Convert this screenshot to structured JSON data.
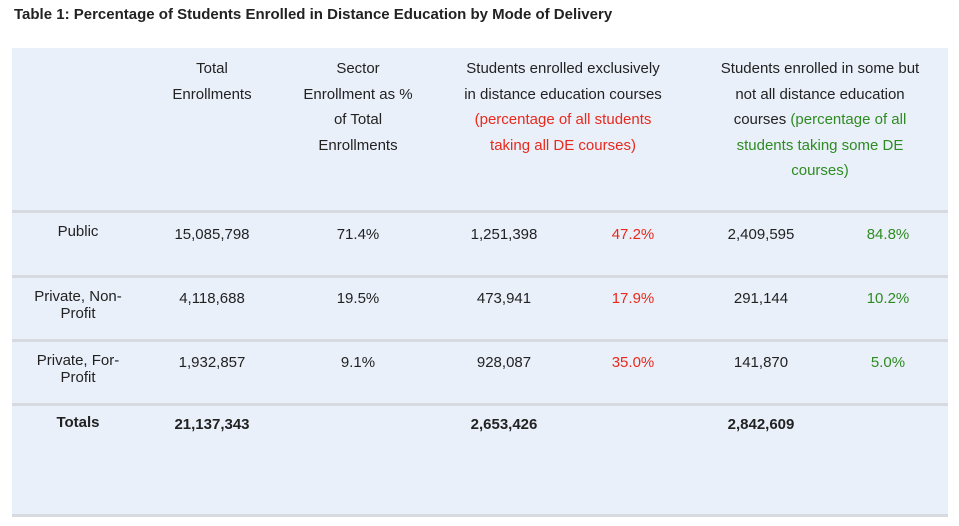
{
  "title": "Table 1:  Percentage of Students Enrolled in Distance Education by Mode of Delivery",
  "headers": {
    "total": [
      "Total",
      "Enrollments"
    ],
    "sector": [
      "Sector",
      "Enrollment as %",
      "of Total",
      "Enrollments"
    ],
    "exclusive_black": [
      "Students enrolled exclusively",
      "in distance education courses"
    ],
    "exclusive_red": [
      "(percentage of all students",
      "taking all DE courses)"
    ],
    "some_black_1": "Students enrolled in some but",
    "some_black_2": "not all distance education",
    "some_black_3": "courses",
    "some_green_3": "(percentage of all",
    "some_green_4": "students taking some DE",
    "some_green_5": "courses)"
  },
  "rows": [
    {
      "label": "Public",
      "total": "15,085,798",
      "sector_pct": "71.4%",
      "exclusive": "1,251,398",
      "exclusive_pct": "47.2%",
      "some": "2,409,595",
      "some_pct": "84.8%"
    },
    {
      "label": "Private, Non-Profit",
      "total": "4,118,688",
      "sector_pct": "19.5%",
      "exclusive": "473,941",
      "exclusive_pct": "17.9%",
      "some": "291,144",
      "some_pct": "10.2%"
    },
    {
      "label": "Private, For-Profit",
      "total": "1,932,857",
      "sector_pct": "9.1%",
      "exclusive": "928,087",
      "exclusive_pct": "35.0%",
      "some": "141,870",
      "some_pct": "5.0%"
    }
  ],
  "totals": {
    "label": "Totals",
    "total": "21,137,343",
    "exclusive": "2,653,426",
    "some": "2,842,609"
  },
  "colors": {
    "panel_bg": "#eaf0fa",
    "divider": "#d7dbe0",
    "red": "#e8291c",
    "green": "#2e8b22"
  }
}
